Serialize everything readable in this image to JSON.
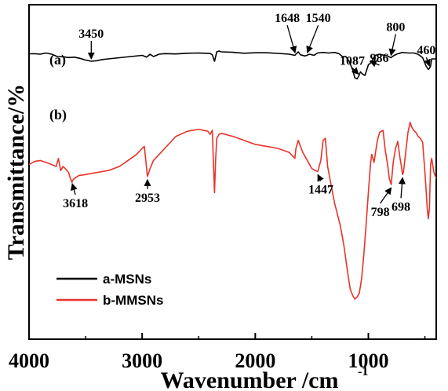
{
  "chart_data": {
    "type": "line",
    "xlabel": "Wavenumber /cm",
    "xlabel_sup": "-1",
    "ylabel": "Transmittance/%",
    "xlim": [
      4000,
      400
    ],
    "x_reversed": true,
    "x_ticks": [
      4000,
      3000,
      2000,
      1000
    ],
    "x_tick_labels": [
      "4000",
      "3000",
      "2000",
      "1000"
    ],
    "grid": false,
    "legend_position": "bottom-left",
    "series": [
      {
        "name": "a-MSNs",
        "curve_label": "(a)",
        "color": "#000000",
        "x": [
          4000,
          3950,
          3900,
          3850,
          3800,
          3750,
          3700,
          3650,
          3600,
          3550,
          3500,
          3450,
          3400,
          3350,
          3300,
          3200,
          3100,
          3000,
          2960,
          2930,
          2900,
          2850,
          2800,
          2700,
          2600,
          2500,
          2400,
          2380,
          2360,
          2340,
          2320,
          2300,
          2200,
          2100,
          2000,
          1900,
          1800,
          1700,
          1650,
          1640,
          1620,
          1600,
          1560,
          1540,
          1520,
          1480,
          1450,
          1400,
          1350,
          1300,
          1260,
          1230,
          1200,
          1170,
          1140,
          1120,
          1100,
          1087,
          1070,
          1050,
          1030,
          1000,
          986,
          970,
          940,
          900,
          860,
          830,
          800,
          780,
          750,
          700,
          650,
          600,
          560,
          520,
          490,
          470,
          460,
          450,
          440,
          420,
          400
        ],
        "y": [
          15.7,
          15.6,
          16.0,
          15.0,
          16.0,
          18.0,
          18.2,
          18.9,
          18.5,
          19.5,
          21.0,
          22.0,
          21.5,
          20.5,
          20.0,
          19.0,
          18.0,
          17.0,
          18.5,
          16.0,
          18.0,
          16.0,
          15.5,
          15.8,
          15.2,
          15.0,
          15.4,
          16.5,
          22.0,
          14.0,
          13.3,
          14.0,
          14.4,
          15.2,
          14.8,
          14.8,
          15.3,
          16.0,
          17.0,
          16.0,
          14.0,
          16.5,
          17.5,
          16.8,
          16.0,
          17.0,
          15.0,
          14.5,
          15.0,
          14.5,
          15.5,
          18.0,
          18.0,
          22.0,
          29.0,
          36.0,
          37.0,
          35.0,
          31.0,
          33.0,
          34.0,
          25.0,
          24.0,
          22.0,
          17.0,
          16.0,
          17.0,
          17.5,
          19.0,
          17.5,
          16.0,
          14.5,
          15.0,
          15.0,
          16.0,
          19.0,
          26.0,
          29.0,
          28.0,
          26.0,
          20.0,
          20.0,
          20.0
        ]
      },
      {
        "name": "b-MMSNs",
        "curve_label": "(b)",
        "color": "#e8332a",
        "x": [
          4000,
          3950,
          3900,
          3850,
          3800,
          3760,
          3740,
          3720,
          3700,
          3680,
          3650,
          3640,
          3620,
          3618,
          3600,
          3560,
          3500,
          3400,
          3300,
          3200,
          3100,
          3050,
          3000,
          2980,
          2953,
          2930,
          2900,
          2850,
          2800,
          2700,
          2600,
          2500,
          2420,
          2400,
          2380,
          2360,
          2350,
          2340,
          2320,
          2300,
          2200,
          2100,
          2000,
          1900,
          1800,
          1700,
          1650,
          1640,
          1620,
          1600,
          1580,
          1560,
          1540,
          1520,
          1500,
          1470,
          1447,
          1420,
          1400,
          1380,
          1360,
          1330,
          1300,
          1250,
          1220,
          1200,
          1180,
          1160,
          1140,
          1120,
          1100,
          1080,
          1060,
          1040,
          1020,
          1000,
          980,
          970,
          960,
          950,
          920,
          900,
          870,
          850,
          830,
          815,
          798,
          780,
          760,
          740,
          720,
          710,
          698,
          690,
          670,
          650,
          630,
          620,
          600,
          580,
          560,
          540,
          520,
          500,
          490,
          480,
          470,
          460,
          450,
          440,
          420,
          400
        ],
        "y": [
          33.0,
          31.5,
          31.0,
          32.0,
          33.0,
          34.0,
          30.0,
          36.0,
          34.0,
          35.0,
          37.0,
          39.0,
          42.0,
          41.0,
          40.0,
          38.5,
          38.0,
          37.0,
          36.0,
          34.0,
          30.0,
          28.0,
          25.0,
          24.0,
          39.0,
          35.0,
          31.0,
          28.0,
          25.0,
          19.0,
          16.5,
          15.5,
          16.5,
          18.0,
          16.0,
          47.0,
          30.0,
          20.0,
          18.0,
          17.5,
          19.0,
          21.0,
          23.0,
          24.0,
          25.0,
          27.0,
          30.0,
          25.0,
          21.0,
          24.0,
          27.0,
          29.0,
          31.0,
          33.0,
          35.0,
          36.0,
          36.5,
          31.0,
          21.0,
          20.0,
          34.0,
          43.0,
          52.0,
          63.0,
          72.0,
          80.0,
          88.0,
          95.0,
          98.0,
          100.0,
          99.0,
          97.0,
          90.0,
          78.0,
          63.0,
          47.0,
          32.0,
          28.0,
          30.0,
          32.0,
          21.0,
          17.0,
          16.0,
          26.0,
          33.0,
          40.0,
          43.0,
          32.0,
          25.0,
          21.5,
          30.0,
          33.0,
          38.0,
          37.0,
          27.0,
          17.0,
          12.0,
          14.0,
          16.0,
          17.0,
          19.0,
          20.0,
          22.0,
          37.0,
          45.0,
          55.0,
          60.0,
          55.0,
          33.0,
          30.0,
          37.0,
          40.0
        ]
      }
    ],
    "annotations": [
      {
        "text": "3450",
        "series": 0,
        "x": 3450
      },
      {
        "text": "1648",
        "series": 0,
        "x": 1648
      },
      {
        "text": "1540",
        "series": 0,
        "x": 1540
      },
      {
        "text": "1087",
        "series": 0,
        "x": 1087
      },
      {
        "text": "986",
        "series": 0,
        "x": 986
      },
      {
        "text": "800",
        "series": 0,
        "x": 800
      },
      {
        "text": "460",
        "series": 0,
        "x": 460
      },
      {
        "text": "3618",
        "series": 1,
        "x": 3618
      },
      {
        "text": "2953",
        "series": 1,
        "x": 2953
      },
      {
        "text": "1447",
        "series": 1,
        "x": 1447
      },
      {
        "text": "798",
        "series": 1,
        "x": 798
      },
      {
        "text": "698",
        "series": 1,
        "x": 698
      }
    ]
  }
}
